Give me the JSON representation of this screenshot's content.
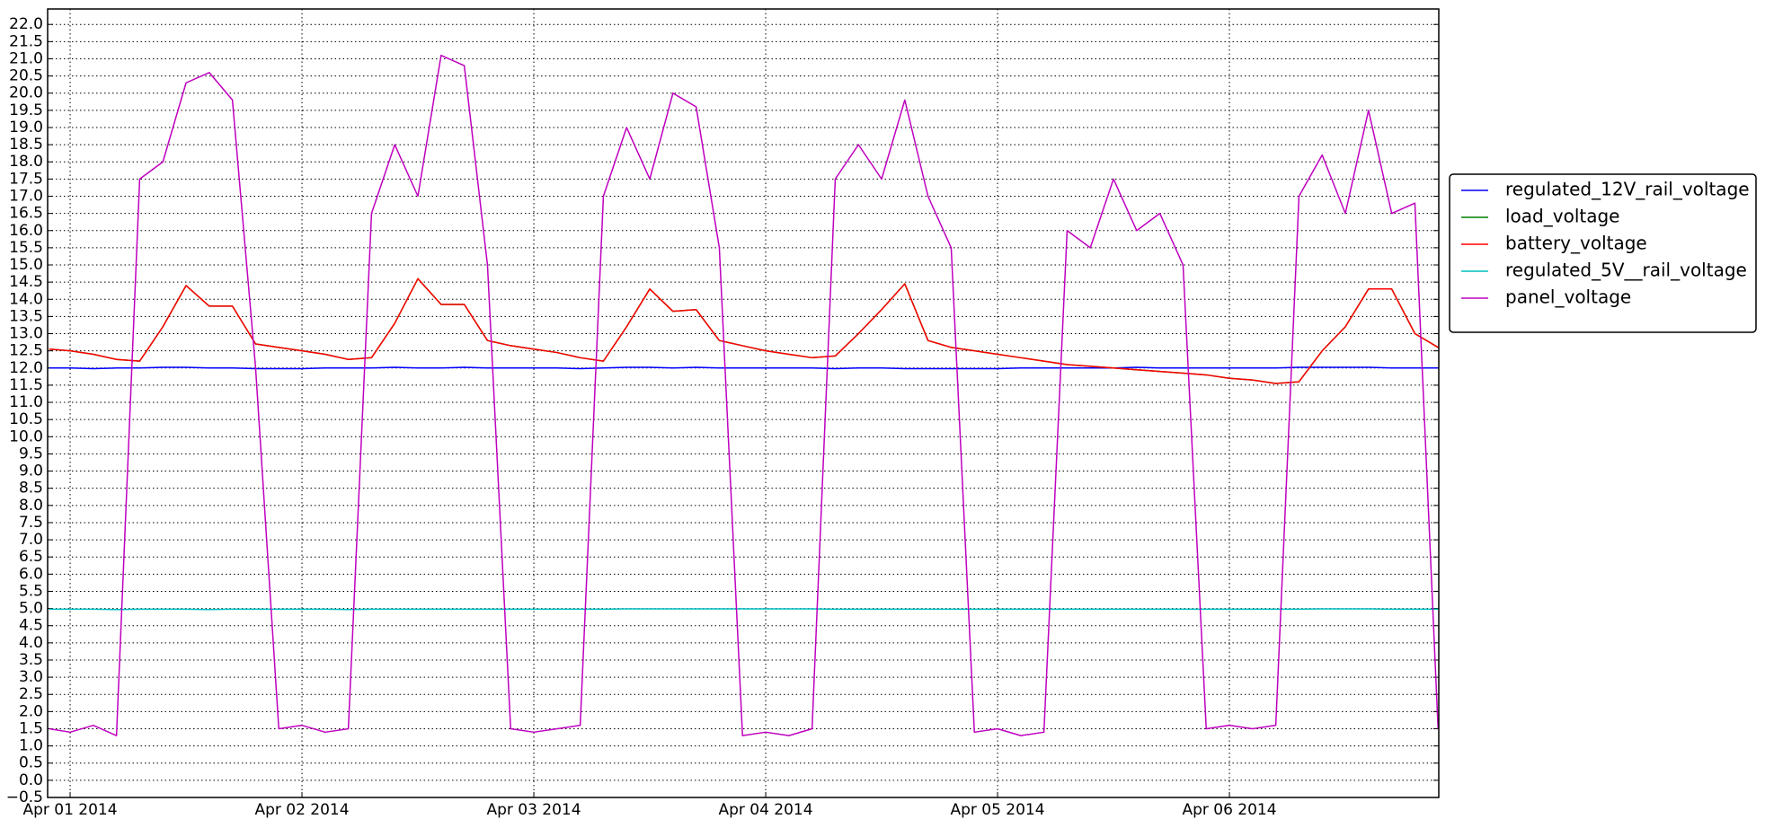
{
  "chart_data": {
    "type": "line",
    "x": [
      -0.09,
      0,
      0.1,
      0.2,
      0.3,
      0.4,
      0.5,
      0.6,
      0.7,
      0.8,
      0.9,
      1.0,
      1.1,
      1.2,
      1.3,
      1.4,
      1.5,
      1.6,
      1.7,
      1.8,
      1.9,
      2.0,
      2.1,
      2.2,
      2.3,
      2.4,
      2.5,
      2.6,
      2.7,
      2.8,
      2.9,
      3.0,
      3.1,
      3.2,
      3.3,
      3.4,
      3.5,
      3.6,
      3.7,
      3.8,
      3.9,
      4.0,
      4.1,
      4.2,
      4.3,
      4.4,
      4.5,
      4.6,
      4.7,
      4.8,
      4.9,
      5.0,
      5.1,
      5.2,
      5.3,
      5.4,
      5.5,
      5.6,
      5.7,
      5.8,
      5.9
    ],
    "xlim": [
      -0.097,
      5.903
    ],
    "xticks": [
      {
        "value": 0,
        "label": "Apr 01 2014"
      },
      {
        "value": 1,
        "label": "Apr 02 2014"
      },
      {
        "value": 2,
        "label": "Apr 03 2014"
      },
      {
        "value": 3,
        "label": "Apr 04 2014"
      },
      {
        "value": 4,
        "label": "Apr 05 2014"
      },
      {
        "value": 5,
        "label": "Apr 06 2014"
      }
    ],
    "ylim": [
      -0.5,
      22.45
    ],
    "yticks": [
      {
        "value": -0.5,
        "label": "−0.5"
      },
      {
        "value": 0,
        "label": "0.0"
      },
      0.5,
      {
        "value": 1,
        "label": "1.0"
      },
      1.5,
      {
        "value": 2,
        "label": "2.0"
      },
      2.5,
      {
        "value": 3,
        "label": "3.0"
      },
      3.5,
      {
        "value": 4,
        "label": "4.0"
      },
      4.5,
      {
        "value": 5,
        "label": "5.0"
      },
      5.5,
      {
        "value": 6,
        "label": "6.0"
      },
      6.5,
      {
        "value": 7,
        "label": "7.0"
      },
      7.5,
      {
        "value": 8,
        "label": "8.0"
      },
      8.5,
      {
        "value": 9,
        "label": "9.0"
      },
      9.5,
      {
        "value": 10,
        "label": "10.0"
      },
      10.5,
      {
        "value": 11,
        "label": "11.0"
      },
      11.5,
      {
        "value": 12,
        "label": "12.0"
      },
      12.5,
      {
        "value": 13,
        "label": "13.0"
      },
      13.5,
      {
        "value": 14,
        "label": "14.0"
      },
      14.5,
      {
        "value": 15,
        "label": "15.0"
      },
      15.5,
      {
        "value": 16,
        "label": "16.0"
      },
      16.5,
      {
        "value": 17,
        "label": "17.0"
      },
      17.5,
      {
        "value": 18,
        "label": "18.0"
      },
      18.5,
      {
        "value": 19,
        "label": "19.0"
      },
      19.5,
      {
        "value": 20,
        "label": "20.0"
      },
      20.5,
      {
        "value": 21,
        "label": "21.0"
      },
      21.5,
      {
        "value": 22,
        "label": "22.0"
      }
    ],
    "grid": true,
    "legend": "right",
    "series": [
      {
        "name": "regulated_12V_rail_voltage",
        "color": "#0000ff",
        "values": [
          12.0,
          12.0,
          11.98,
          12.0,
          12.0,
          12.02,
          12.02,
          12.0,
          12.0,
          11.98,
          11.98,
          11.98,
          12.0,
          12.0,
          12.0,
          12.02,
          12.0,
          12.0,
          12.02,
          12.0,
          12.0,
          12.0,
          12.0,
          11.98,
          12.0,
          12.02,
          12.02,
          12.0,
          12.02,
          12.0,
          12.0,
          12.0,
          12.0,
          12.0,
          11.98,
          12.0,
          12.0,
          11.98,
          11.98,
          11.98,
          11.98,
          11.98,
          12.0,
          12.0,
          12.0,
          12.0,
          12.0,
          12.02,
          12.0,
          12.0,
          12.0,
          12.0,
          12.0,
          12.0,
          12.02,
          12.02,
          12.02,
          12.02,
          12.0,
          12.0,
          12.0
        ]
      },
      {
        "name": "load_voltage",
        "color": "#008000",
        "values": [
          12.55,
          12.5,
          12.4,
          12.25,
          12.2,
          13.2,
          14.4,
          13.8,
          13.8,
          12.7,
          12.6,
          12.5,
          12.4,
          12.25,
          12.3,
          13.3,
          14.6,
          13.85,
          13.85,
          12.8,
          12.65,
          12.55,
          12.45,
          12.3,
          12.2,
          13.2,
          14.3,
          13.65,
          13.7,
          12.8,
          12.65,
          12.5,
          12.4,
          12.3,
          12.35,
          13.0,
          13.7,
          14.45,
          12.8,
          12.6,
          12.5,
          12.4,
          12.3,
          12.2,
          12.1,
          12.05,
          12.0,
          11.95,
          11.9,
          11.85,
          11.8,
          11.7,
          11.65,
          11.55,
          11.6,
          12.5,
          13.2,
          14.3,
          14.3,
          13.0,
          12.6
        ]
      },
      {
        "name": "battery_voltage",
        "color": "#ff0000",
        "values": [
          12.55,
          12.5,
          12.4,
          12.25,
          12.2,
          13.2,
          14.4,
          13.8,
          13.8,
          12.7,
          12.6,
          12.5,
          12.4,
          12.25,
          12.3,
          13.3,
          14.6,
          13.85,
          13.85,
          12.8,
          12.65,
          12.55,
          12.45,
          12.3,
          12.2,
          13.2,
          14.3,
          13.65,
          13.7,
          12.8,
          12.65,
          12.5,
          12.4,
          12.3,
          12.35,
          13.0,
          13.7,
          14.45,
          12.8,
          12.6,
          12.5,
          12.4,
          12.3,
          12.2,
          12.1,
          12.05,
          12.0,
          11.95,
          11.9,
          11.85,
          11.8,
          11.7,
          11.65,
          11.55,
          11.6,
          12.5,
          13.2,
          14.3,
          14.3,
          13.0,
          12.6
        ]
      },
      {
        "name": "regulated_5V__rail_voltage",
        "color": "#00bfbf",
        "values": [
          4.98,
          4.98,
          4.98,
          4.97,
          4.98,
          4.98,
          4.98,
          4.97,
          4.98,
          4.98,
          4.98,
          4.98,
          4.98,
          4.97,
          4.98,
          4.98,
          4.98,
          4.98,
          4.98,
          4.98,
          4.98,
          4.98,
          4.98,
          4.98,
          4.98,
          4.99,
          4.99,
          4.99,
          4.99,
          4.99,
          4.99,
          4.99,
          4.99,
          4.99,
          4.98,
          4.98,
          4.98,
          4.98,
          4.98,
          4.98,
          4.98,
          4.98,
          4.98,
          4.98,
          4.98,
          4.98,
          4.98,
          4.98,
          4.98,
          4.98,
          4.98,
          4.98,
          4.98,
          4.98,
          4.98,
          4.99,
          4.99,
          4.99,
          4.98,
          4.98,
          4.98
        ]
      },
      {
        "name": "panel_voltage",
        "color": "#bf00bf",
        "values": [
          1.5,
          1.4,
          1.6,
          1.3,
          17.5,
          18.0,
          20.3,
          20.6,
          19.8,
          12,
          1.5,
          1.6,
          1.4,
          1.5,
          16.5,
          18.5,
          17,
          21.1,
          20.8,
          15,
          1.5,
          1.4,
          1.5,
          1.6,
          17,
          19,
          17.5,
          20.0,
          19.6,
          15.5,
          1.3,
          1.4,
          1.3,
          1.5,
          17.5,
          18.5,
          17.5,
          19.8,
          17,
          15.5,
          1.4,
          1.5,
          1.3,
          1.4,
          16,
          15.5,
          17.5,
          16,
          16.5,
          15,
          1.5,
          1.6,
          1.5,
          1.6,
          17,
          18.2,
          16.5,
          19.5,
          16.5,
          16.8,
          1.5
        ]
      }
    ]
  }
}
